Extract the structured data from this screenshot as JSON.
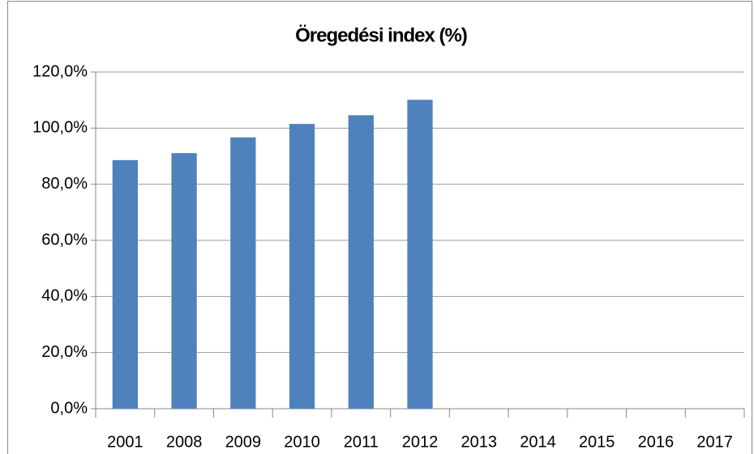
{
  "chart_data": {
    "type": "bar",
    "title": "Öregedési index (%)",
    "categories": [
      "2001",
      "2008",
      "2009",
      "2010",
      "2011",
      "2012",
      "2013",
      "2014",
      "2015",
      "2016",
      "2017"
    ],
    "values": [
      88.6,
      91.1,
      96.7,
      101.5,
      104.6,
      110.1,
      null,
      null,
      null,
      null,
      null
    ],
    "color": "#4f81bd",
    "ylim": [
      0,
      120
    ],
    "yticks": [
      {
        "value": 0,
        "label": "0,0%"
      },
      {
        "value": 20,
        "label": "20,0%"
      },
      {
        "value": 40,
        "label": "40,0%"
      },
      {
        "value": 60,
        "label": "60,0%"
      },
      {
        "value": 80,
        "label": "80,0%"
      },
      {
        "value": 100,
        "label": "100,0%"
      },
      {
        "value": 120,
        "label": "120,0%"
      }
    ],
    "grid": true
  }
}
